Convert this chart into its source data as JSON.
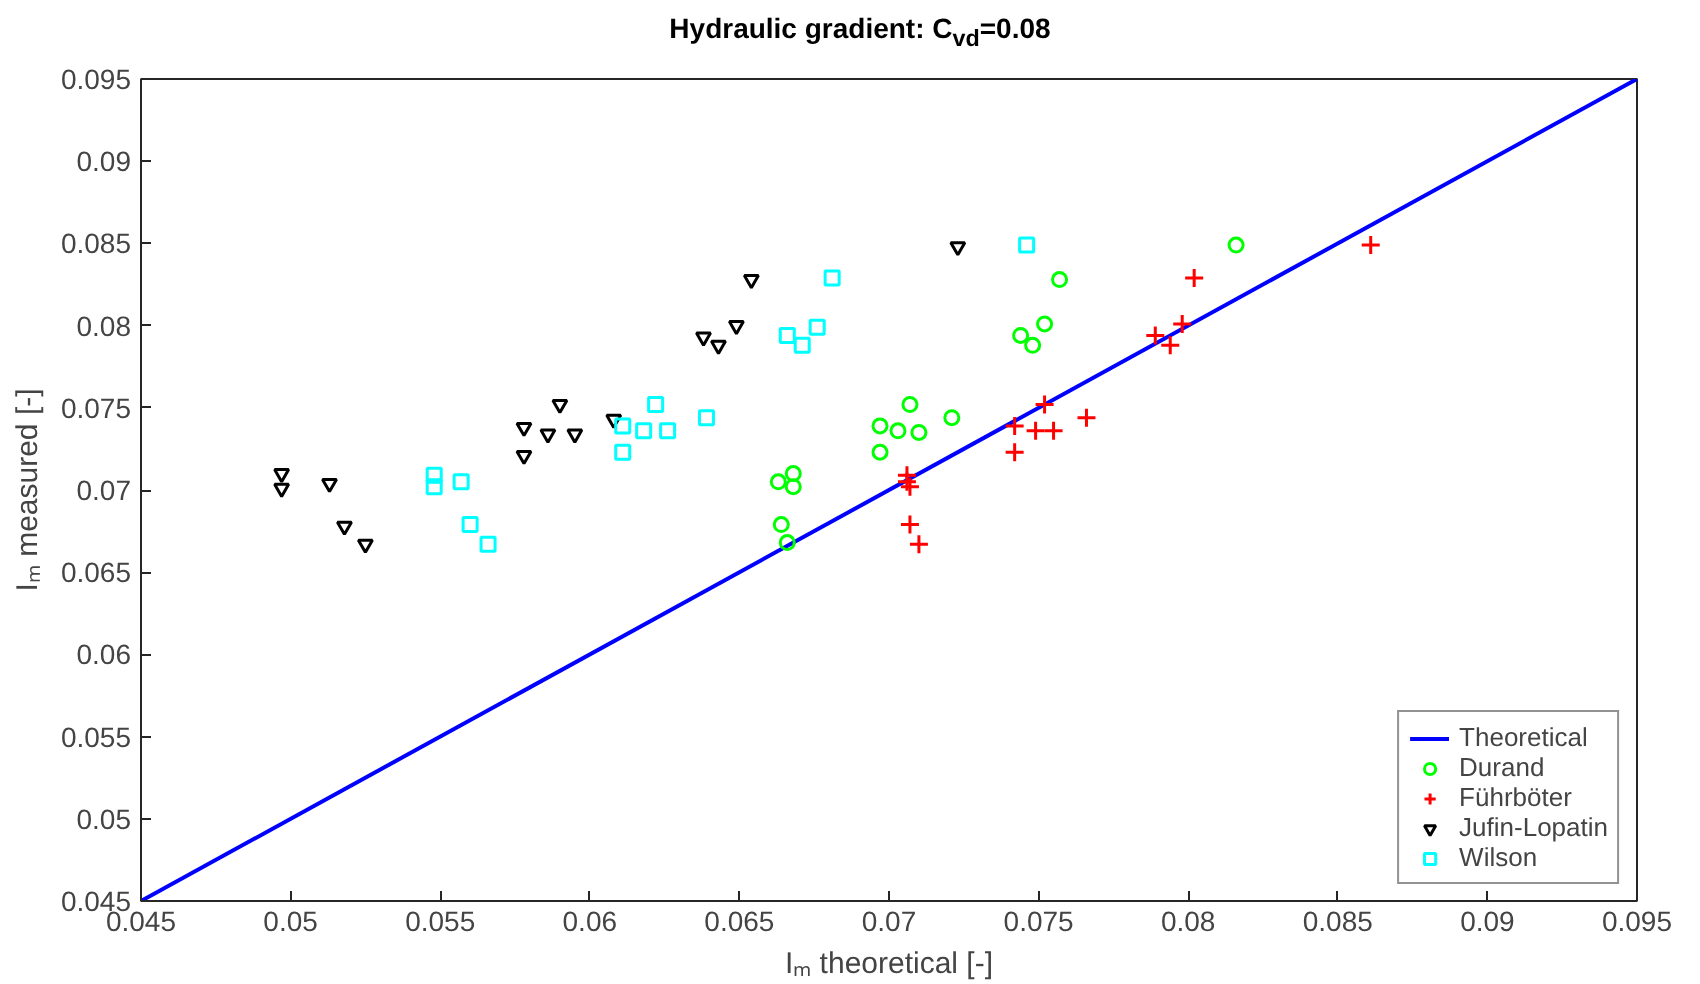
{
  "chart_data": {
    "type": "scatter",
    "title": "Hydraulic gradient: C$_{vd}$=0.08",
    "xlabel": "Iₘ theoretical [-]",
    "ylabel": "Iₘ measured [-]",
    "xlim": [
      0.045,
      0.095
    ],
    "ylim": [
      0.045,
      0.095
    ],
    "xticks": [
      0.045,
      0.05,
      0.055,
      0.06,
      0.065,
      0.07,
      0.075,
      0.08,
      0.085,
      0.09,
      0.095
    ],
    "yticks": [
      0.045,
      0.05,
      0.055,
      0.06,
      0.065,
      0.07,
      0.075,
      0.08,
      0.085,
      0.09,
      0.095
    ],
    "grid": false,
    "legend": "bottom right",
    "series": [
      {
        "name": "Theoretical",
        "type": "line",
        "marker": "none",
        "line_style": "solid",
        "color": "#0000ff",
        "x": [
          0.045,
          0.095
        ],
        "values": [
          0.045,
          0.095
        ]
      },
      {
        "name": "Durand",
        "marker": "circle",
        "color": "#00ff00",
        "x": [
          0.0816,
          0.0757,
          0.0752,
          0.0744,
          0.0748,
          0.0707,
          0.0721,
          0.0697,
          0.0703,
          0.071,
          0.0697,
          0.0668,
          0.0663,
          0.0668,
          0.0664,
          0.0666
        ],
        "values": [
          0.0849,
          0.0828,
          0.0801,
          0.0794,
          0.0788,
          0.0752,
          0.0744,
          0.0739,
          0.0736,
          0.0735,
          0.0723,
          0.071,
          0.0705,
          0.0702,
          0.0679,
          0.0668
        ]
      },
      {
        "name": "Führböter",
        "marker": "cross",
        "color": "#ff0000",
        "x": [
          0.0861,
          0.0802,
          0.0798,
          0.0789,
          0.0794,
          0.0752,
          0.0766,
          0.0742,
          0.0749,
          0.0755,
          0.0742,
          0.0706,
          0.0706,
          0.0707,
          0.0707,
          0.071
        ],
        "values": [
          0.0849,
          0.0829,
          0.0801,
          0.0794,
          0.0788,
          0.0752,
          0.0744,
          0.0739,
          0.0736,
          0.0736,
          0.0723,
          0.0709,
          0.0705,
          0.0702,
          0.0679,
          0.0667
        ]
      },
      {
        "name": "Jufin-Lopatin",
        "marker": "triangle",
        "color": "#000000",
        "x": [
          0.0497,
          0.0497,
          0.0513,
          0.0518,
          0.0525,
          0.0578,
          0.0578,
          0.0586,
          0.059,
          0.0595,
          0.0608,
          0.0638,
          0.0643,
          0.0649,
          0.0654,
          0.0723
        ],
        "values": [
          0.071,
          0.0701,
          0.0704,
          0.0678,
          0.0667,
          0.0738,
          0.0721,
          0.0734,
          0.0752,
          0.0734,
          0.0743,
          0.0793,
          0.0788,
          0.08,
          0.0828,
          0.0848
        ]
      },
      {
        "name": "Wilson",
        "marker": "square",
        "color": "#00ffff",
        "x": [
          0.0548,
          0.0548,
          0.0557,
          0.056,
          0.0566,
          0.0611,
          0.0611,
          0.0618,
          0.0622,
          0.0626,
          0.0639,
          0.0666,
          0.0671,
          0.0676,
          0.0681,
          0.0746
        ],
        "values": [
          0.0709,
          0.0702,
          0.0705,
          0.0679,
          0.0667,
          0.0739,
          0.0723,
          0.0736,
          0.0752,
          0.0736,
          0.0744,
          0.0794,
          0.0788,
          0.0799,
          0.0829,
          0.0849
        ]
      }
    ]
  }
}
